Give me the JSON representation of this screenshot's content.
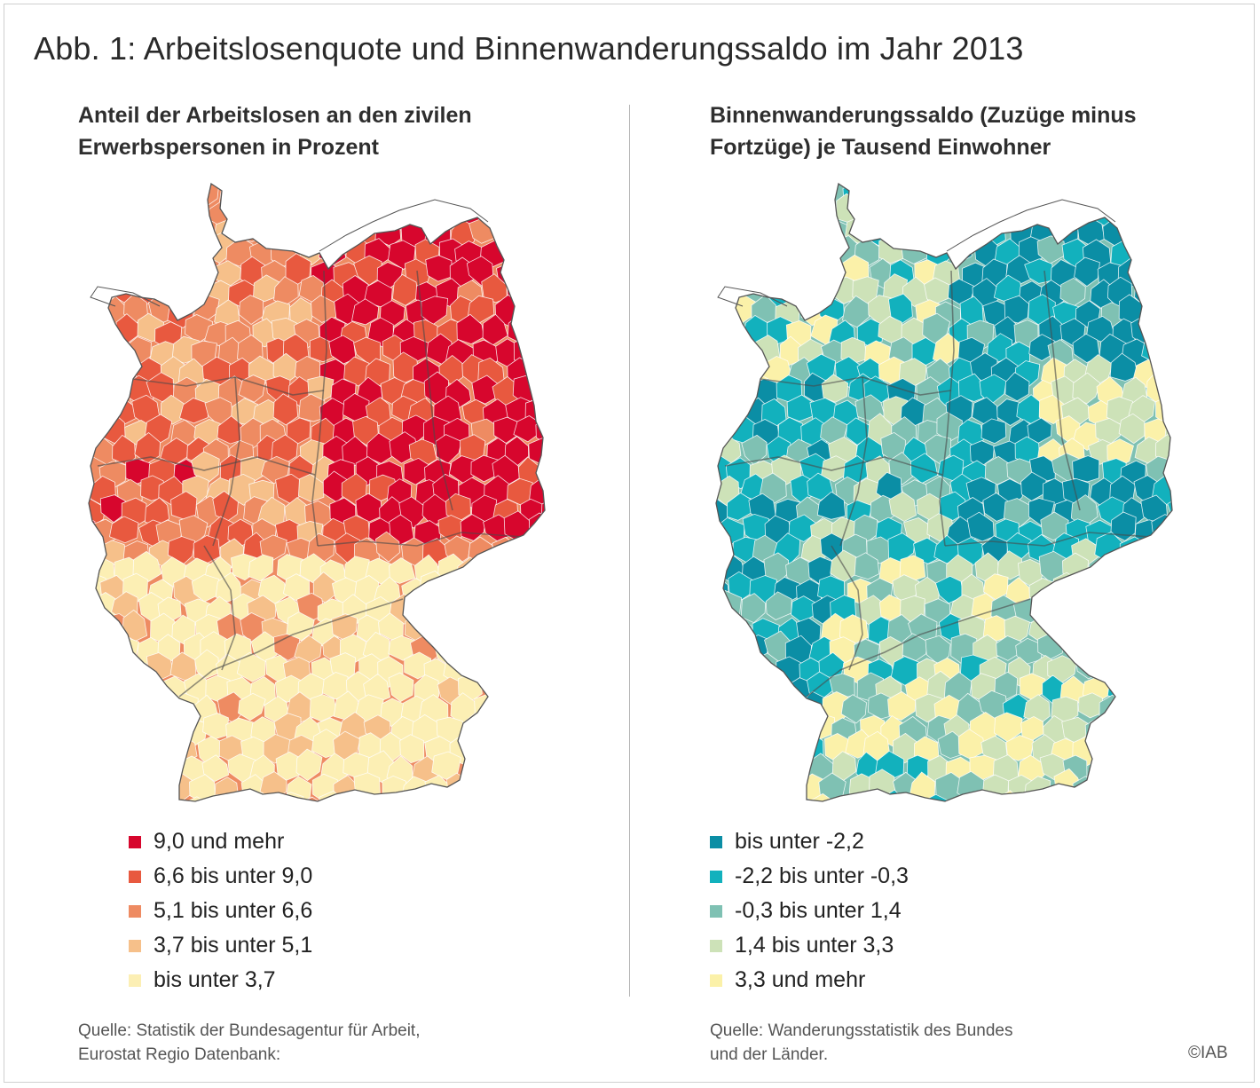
{
  "title": "Abb. 1: Arbeitslosenquote und Binnenwanderungssaldo im Jahr 2013",
  "maps": [
    {
      "subtitle_lines": [
        "Anteil der Arbeitslosen an den zivilen",
        "Erwerbspersonen in Prozent"
      ],
      "legend": [
        {
          "label": "9,0 und mehr",
          "color": "#d7062d"
        },
        {
          "label": "6,6 bis unter 9,0",
          "color": "#e8593f"
        },
        {
          "label": "5,1 bis unter 6,6",
          "color": "#ee8b62"
        },
        {
          "label": "3,7 bis unter 5,1",
          "color": "#f6c08a"
        },
        {
          "label": "bis unter 3,7",
          "color": "#fcefb4"
        }
      ],
      "source_lines": [
        "Quelle: Statistik der Bundesagentur für Arbeit,",
        "Eurostat Regio Datenbank:"
      ]
    },
    {
      "subtitle_lines": [
        "Binnenwanderungssaldo (Zuzüge minus",
        "Fortzüge) je Tausend Einwohner"
      ],
      "legend": [
        {
          "label": "bis unter -2,2",
          "color": "#0b8ea5"
        },
        {
          "label": "-2,2 bis unter -0,3",
          "color": "#12b1bd"
        },
        {
          "label": "-0,3 bis unter 1,4",
          "color": "#7fc1b3"
        },
        {
          "label": "1,4 bis unter 3,3",
          "color": "#cde2b8"
        },
        {
          "label": "3,3 und mehr",
          "color": "#fbf1a9"
        }
      ],
      "source_lines": [
        "Quelle: Wanderungsstatistik des Bundes",
        "und der Länder."
      ]
    }
  ],
  "copyright": "©IAB"
}
